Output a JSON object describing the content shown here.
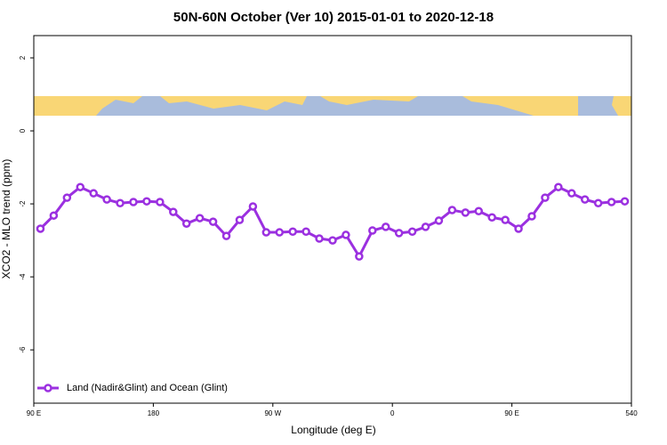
{
  "chart_data": {
    "type": "line",
    "title": "50N-60N October (Ver 10)   2015-01-01 to 2020-12-18",
    "x_label": "Longitude (deg E)",
    "y_label": "XCO2 - MLO trend (ppm)",
    "x": [
      95,
      105,
      115,
      125,
      135,
      145,
      155,
      165,
      175,
      185,
      195,
      205,
      215,
      225,
      235,
      245,
      255,
      265,
      275,
      285,
      295,
      305,
      315,
      325,
      335,
      345,
      355,
      365,
      375,
      385,
      395,
      405,
      415,
      425,
      435,
      445,
      455,
      465,
      475,
      485,
      495,
      505,
      515,
      525,
      535
    ],
    "series": [
      {
        "name": "Land (Nadir&Glint) and Ocean (Glint)",
        "color": "#9b30e0",
        "values": [
          -2.68,
          -2.32,
          -1.83,
          -1.54,
          -1.71,
          -1.88,
          -1.98,
          -1.95,
          -1.93,
          -1.95,
          -2.22,
          -2.54,
          -2.39,
          -2.49,
          -2.88,
          -2.44,
          -2.07,
          -2.78,
          -2.78,
          -2.76,
          -2.76,
          -2.95,
          -3.0,
          -2.85,
          -3.44,
          -2.73,
          -2.63,
          -2.8,
          -2.76,
          -2.63,
          -2.46,
          -2.17,
          -2.24,
          -2.2,
          -2.37,
          -2.44,
          -2.68,
          -2.34,
          -1.83,
          -1.54,
          -1.71,
          -1.88,
          -1.98,
          -1.95,
          -1.93
        ]
      }
    ],
    "xlim": [
      90,
      540
    ],
    "xticks": [
      {
        "value": 90,
        "label": "90 E"
      },
      180,
      {
        "value": 270,
        "label": "90 W"
      },
      {
        "value": 360,
        "label": "0"
      },
      {
        "value": 450,
        "label": "90 E"
      },
      540
    ],
    "ylim": [
      -7.46,
      2.61
    ],
    "yticks": [
      2,
      0,
      -2,
      -4,
      -6
    ],
    "legend": "bottom-left"
  }
}
